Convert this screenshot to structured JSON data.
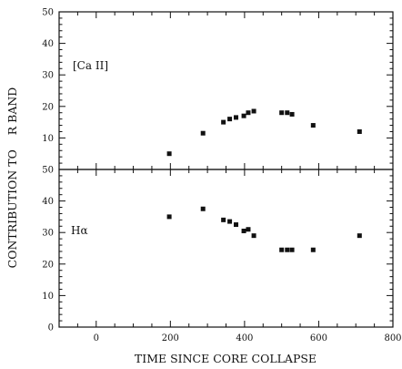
{
  "chart_data": {
    "type": "scatter",
    "xlabel": "TIME SINCE CORE COLLAPSE",
    "ylabel": "CONTRIBUTION TO    R BAND",
    "xlim": [
      -100,
      800
    ],
    "x_ticks": [
      0,
      200,
      400,
      600,
      800
    ],
    "x_tick_labels": [
      "0",
      "200",
      "400",
      "600",
      "800"
    ],
    "grid": false,
    "colors": {
      "marker": "#111111",
      "frame": "#111111",
      "background": "#ffffff"
    },
    "panels": [
      {
        "label": "[Ca II]",
        "ylim": [
          0,
          50
        ],
        "y_ticks": [
          10,
          20,
          30,
          40,
          50
        ],
        "y_tick_labels": [
          "10",
          "20",
          "30",
          "40",
          "50"
        ],
        "series": [
          {
            "x": [
              197,
              288,
              343,
              360,
              377,
              398,
              410,
              425,
              500,
              515,
              528,
              585,
              710
            ],
            "y": [
              5,
              11.5,
              15,
              16,
              16.5,
              17,
              18,
              18.5,
              18,
              18,
              17.5,
              14,
              12
            ]
          }
        ]
      },
      {
        "label": "Hα",
        "ylim": [
          0,
          50
        ],
        "y_ticks": [
          0,
          10,
          20,
          30,
          40,
          50
        ],
        "y_tick_labels": [
          "0",
          "10",
          "20",
          "30",
          "40",
          "50"
        ],
        "series": [
          {
            "x": [
              197,
              288,
              343,
              360,
              377,
              398,
              410,
              425,
              500,
              515,
              528,
              585,
              710
            ],
            "y": [
              35,
              37.5,
              34,
              33.5,
              32.5,
              30.5,
              31,
              29,
              24.5,
              24.5,
              24.5,
              24.5,
              29
            ]
          }
        ]
      }
    ]
  }
}
